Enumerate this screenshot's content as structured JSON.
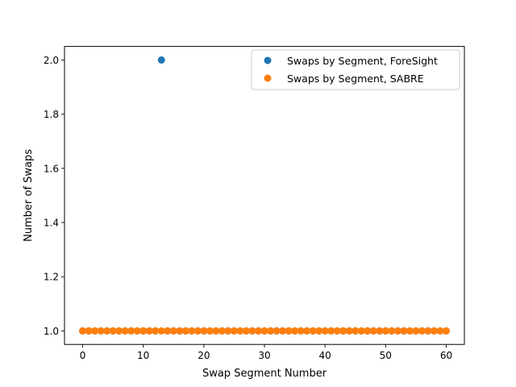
{
  "chart_data": {
    "type": "scatter",
    "xlabel": "Swap Segment Number",
    "ylabel": "Number of Swaps",
    "xlim": [
      -3,
      63
    ],
    "ylim": [
      0.95,
      2.05
    ],
    "x_ticks": [
      0,
      10,
      20,
      30,
      40,
      50,
      60
    ],
    "y_ticks": [
      1.0,
      1.2,
      1.4,
      1.6,
      1.8,
      2.0
    ],
    "y_tick_labels": [
      "1.0",
      "1.2",
      "1.4",
      "1.6",
      "1.8",
      "2.0"
    ],
    "grid": false,
    "legend_position": "top-right",
    "series": [
      {
        "name": "Swaps by Segment, ForeSight",
        "color": "#1f77b4",
        "x": [
          0,
          1,
          2,
          3,
          4,
          5,
          6,
          7,
          8,
          9,
          10,
          11,
          12,
          13,
          14,
          15,
          16,
          17,
          18,
          19,
          20,
          21,
          22,
          23,
          24,
          25,
          26,
          27,
          28,
          29,
          30,
          31,
          32,
          33,
          34,
          35,
          36,
          37,
          38,
          39,
          40,
          41,
          42,
          43,
          44,
          45,
          46,
          47,
          48,
          49,
          50,
          51,
          52,
          53,
          54,
          55,
          56,
          57,
          58,
          59,
          60
        ],
        "y": [
          1,
          1,
          1,
          1,
          1,
          1,
          1,
          1,
          1,
          1,
          1,
          1,
          1,
          2,
          1,
          1,
          1,
          1,
          1,
          1,
          1,
          1,
          1,
          1,
          1,
          1,
          1,
          1,
          1,
          1,
          1,
          1,
          1,
          1,
          1,
          1,
          1,
          1,
          1,
          1,
          1,
          1,
          1,
          1,
          1,
          1,
          1,
          1,
          1,
          1,
          1,
          1,
          1,
          1,
          1,
          1,
          1,
          1,
          1,
          1,
          1
        ]
      },
      {
        "name": "Swaps by Segment, SABRE",
        "color": "#ff7f0e",
        "x": [
          0,
          1,
          2,
          3,
          4,
          5,
          6,
          7,
          8,
          9,
          10,
          11,
          12,
          13,
          14,
          15,
          16,
          17,
          18,
          19,
          20,
          21,
          22,
          23,
          24,
          25,
          26,
          27,
          28,
          29,
          30,
          31,
          32,
          33,
          34,
          35,
          36,
          37,
          38,
          39,
          40,
          41,
          42,
          43,
          44,
          45,
          46,
          47,
          48,
          49,
          50,
          51,
          52,
          53,
          54,
          55,
          56,
          57,
          58,
          59,
          60
        ],
        "y": [
          1,
          1,
          1,
          1,
          1,
          1,
          1,
          1,
          1,
          1,
          1,
          1,
          1,
          1,
          1,
          1,
          1,
          1,
          1,
          1,
          1,
          1,
          1,
          1,
          1,
          1,
          1,
          1,
          1,
          1,
          1,
          1,
          1,
          1,
          1,
          1,
          1,
          1,
          1,
          1,
          1,
          1,
          1,
          1,
          1,
          1,
          1,
          1,
          1,
          1,
          1,
          1,
          1,
          1,
          1,
          1,
          1,
          1,
          1,
          1,
          1
        ]
      }
    ]
  }
}
